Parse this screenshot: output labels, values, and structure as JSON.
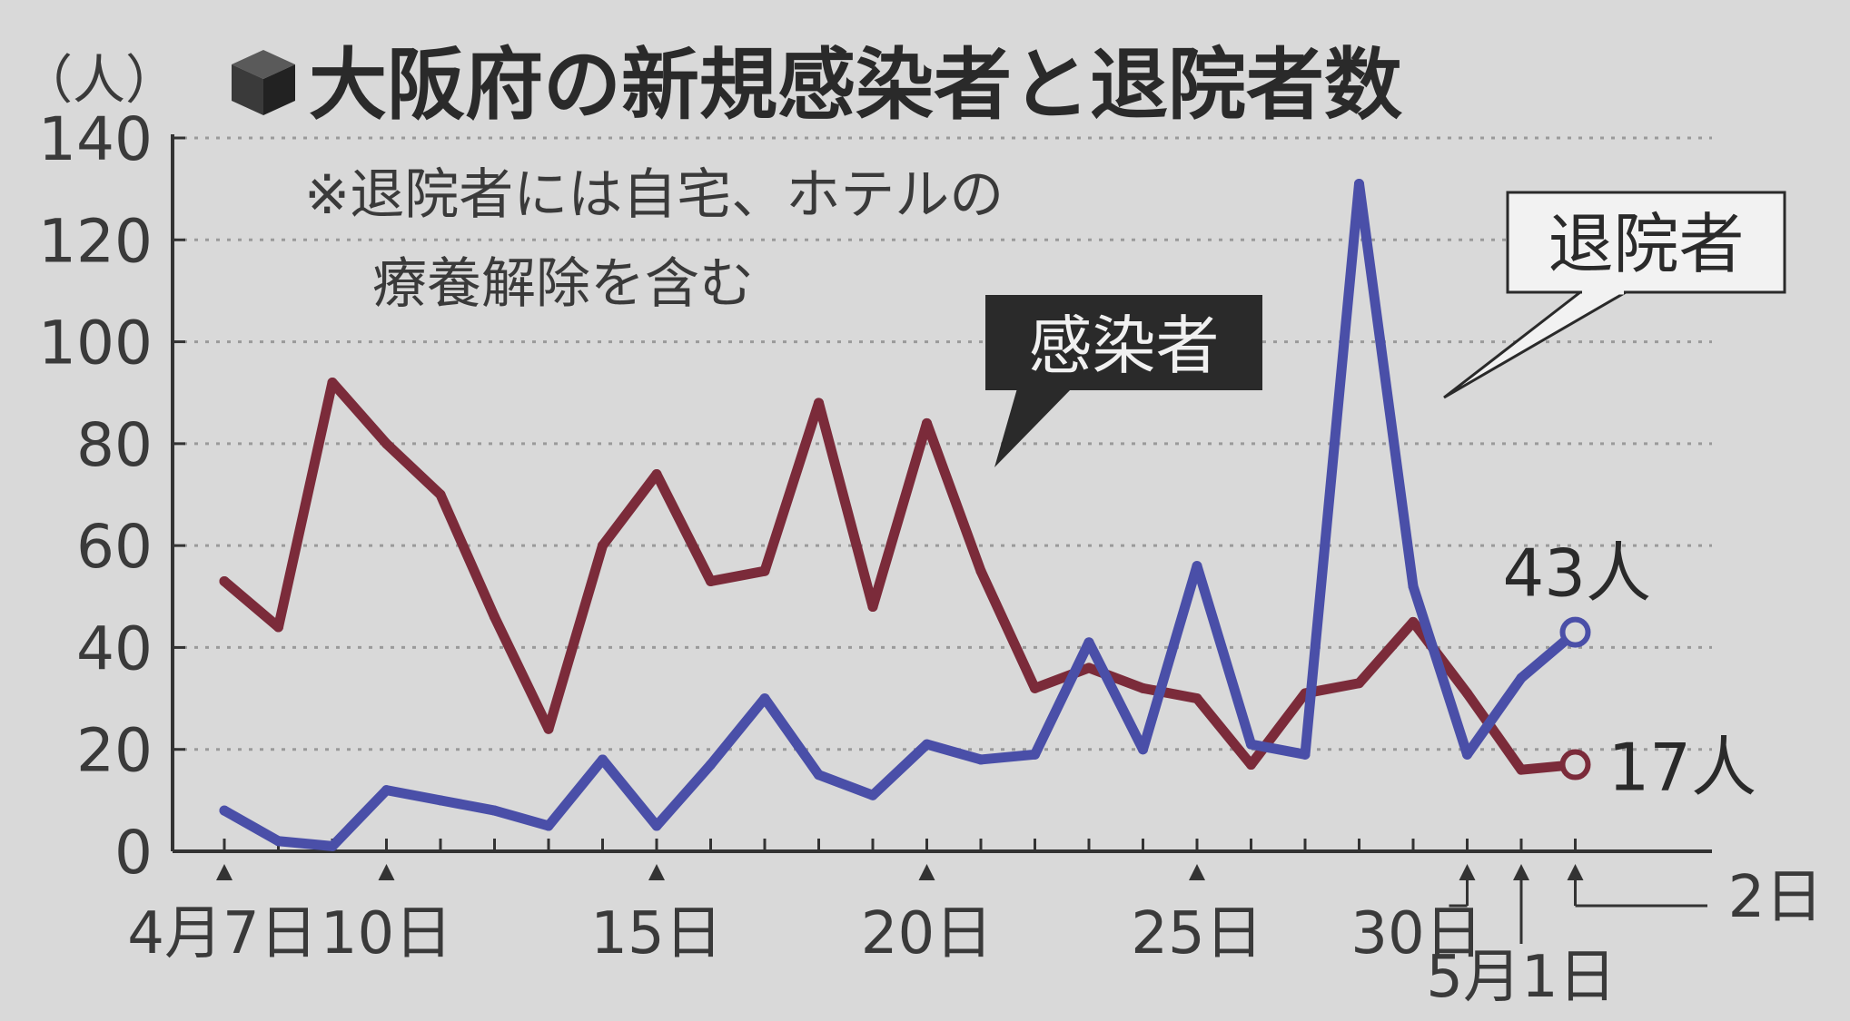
{
  "header": {
    "unit": "（人）",
    "title": "大阪府の新規感染者と退院者数"
  },
  "note": {
    "line1": "※退院者には自宅、ホテルの",
    "line2": "療養解除を含む"
  },
  "colors": {
    "infected": "#7b2b3a",
    "discharged": "#4a4fa8",
    "label_box": "#2a2a2a",
    "background": "#d9d9d9",
    "grid": "#9a9a9a",
    "axis": "#333333"
  },
  "chart_data": {
    "type": "line",
    "title": "大阪府の新規感染者と退院者数",
    "ylabel": "（人）",
    "ylim": [
      0,
      140
    ],
    "yticks": [
      "0",
      "20",
      "40",
      "60",
      "80",
      "100",
      "120",
      "140"
    ],
    "x_days": [
      "4/7",
      "4/8",
      "4/9",
      "4/10",
      "4/11",
      "4/12",
      "4/13",
      "4/14",
      "4/15",
      "4/16",
      "4/17",
      "4/18",
      "4/19",
      "4/20",
      "4/21",
      "4/22",
      "4/23",
      "4/24",
      "4/25",
      "4/26",
      "4/27",
      "4/28",
      "4/29",
      "4/30",
      "5/1",
      "5/2"
    ],
    "x_ticklabels": [
      {
        "index": 0,
        "text": "4月7日"
      },
      {
        "index": 3,
        "text": "10日"
      },
      {
        "index": 8,
        "text": "15日"
      },
      {
        "index": 13,
        "text": "20日"
      },
      {
        "index": 18,
        "text": "25日"
      },
      {
        "index": 23,
        "text": "30日"
      },
      {
        "index": 24,
        "text": "5月1日"
      },
      {
        "index": 25,
        "text": "2日"
      }
    ],
    "series": [
      {
        "name": "感染者",
        "values": [
          53,
          44,
          92,
          80,
          70,
          46,
          24,
          60,
          74,
          53,
          55,
          88,
          48,
          84,
          55,
          32,
          36,
          32,
          30,
          17,
          31,
          33,
          45,
          31,
          16,
          17
        ],
        "end_label": "17人"
      },
      {
        "name": "退院者",
        "values": [
          8,
          2,
          1,
          12,
          10,
          8,
          5,
          18,
          5,
          17,
          30,
          15,
          11,
          21,
          18,
          19,
          41,
          20,
          56,
          21,
          19,
          131,
          52,
          19,
          34,
          43
        ],
        "end_label": "43人"
      }
    ],
    "grid": true,
    "legend": "inline-labels"
  }
}
